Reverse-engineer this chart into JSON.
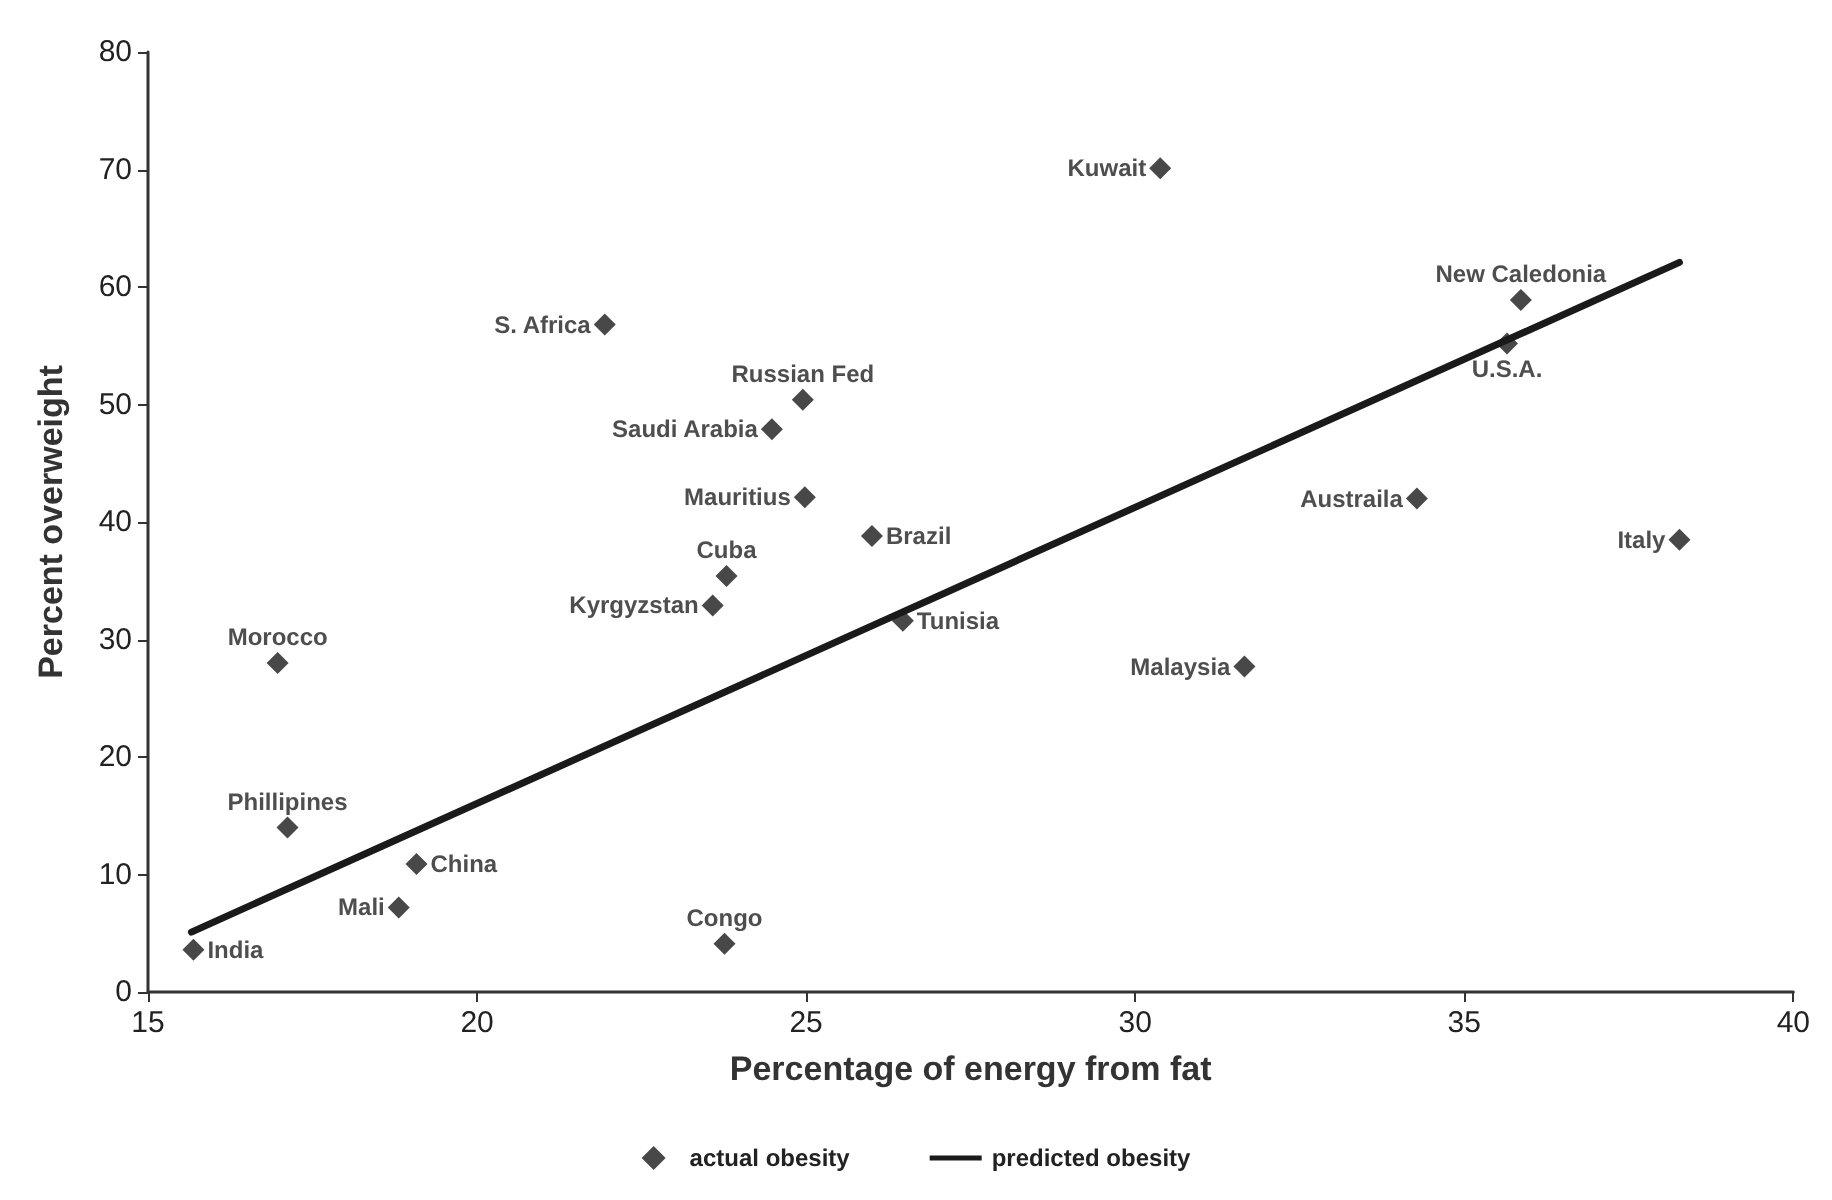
{
  "chart_data": {
    "type": "scatter",
    "xlabel": "Percentage of energy from fat",
    "ylabel": "Percent overweight",
    "xlim": [
      15,
      40
    ],
    "xticks": [
      15,
      20,
      25,
      30,
      35,
      40
    ],
    "ylim": [
      0,
      80
    ],
    "yticks": [
      0,
      10,
      20,
      30,
      40,
      50,
      60,
      70,
      80
    ],
    "grid": false,
    "legend": "bottom",
    "series": [
      {
        "name": "actual obesity",
        "marker": "diamond",
        "color": "#1a1a1a",
        "x": [
          15.69,
          16.97,
          17.12,
          18.81,
          19.08,
          21.94,
          23.58,
          23.79,
          23.76,
          24.48,
          24.95,
          24.98,
          26.0,
          26.47,
          30.38,
          31.66,
          34.28,
          35.65,
          35.86,
          38.27
        ],
        "values": [
          3.6,
          28.0,
          14.0,
          7.2,
          10.9,
          56.8,
          32.9,
          35.4,
          4.1,
          47.9,
          50.4,
          42.1,
          38.8,
          31.6,
          70.1,
          27.7,
          42.0,
          55.2,
          58.9,
          38.5
        ]
      },
      {
        "name": "predicted obesity",
        "type": "line",
        "marker": "none",
        "line_style": "solid",
        "color": "#1a1a1a",
        "x": [
          15.66,
          38.27
        ],
        "values": [
          5.1,
          62.1
        ]
      }
    ],
    "annotations": [
      {
        "text": "India",
        "x": 15.69,
        "y": 3.6
      },
      {
        "text": "Morocco",
        "x": 16.97,
        "y": 28.0
      },
      {
        "text": "Phillipines",
        "x": 17.12,
        "y": 14.0
      },
      {
        "text": "Mali",
        "x": 18.81,
        "y": 7.2
      },
      {
        "text": "China",
        "x": 19.08,
        "y": 10.9
      },
      {
        "text": "S. Africa",
        "x": 21.94,
        "y": 56.8
      },
      {
        "text": "Kyrgyzstan",
        "x": 23.58,
        "y": 32.9
      },
      {
        "text": "Cuba",
        "x": 23.79,
        "y": 35.4
      },
      {
        "text": "Congo",
        "x": 23.76,
        "y": 4.1
      },
      {
        "text": "Saudi Arabia",
        "x": 24.48,
        "y": 47.9
      },
      {
        "text": "Russian Fed",
        "x": 24.95,
        "y": 50.4
      },
      {
        "text": "Mauritius",
        "x": 24.98,
        "y": 42.1
      },
      {
        "text": "Brazil",
        "x": 26.0,
        "y": 38.8
      },
      {
        "text": "Tunisia",
        "x": 26.47,
        "y": 31.6
      },
      {
        "text": "Kuwait",
        "x": 30.38,
        "y": 70.1
      },
      {
        "text": "Malaysia",
        "x": 31.66,
        "y": 27.7
      },
      {
        "text": "Austraila",
        "x": 34.28,
        "y": 42.0
      },
      {
        "text": "U.S.A.",
        "x": 35.65,
        "y": 55.2
      },
      {
        "text": "New Caledonia",
        "x": 35.86,
        "y": 58.9
      },
      {
        "text": "Italy",
        "x": 38.27,
        "y": 38.5
      }
    ]
  }
}
